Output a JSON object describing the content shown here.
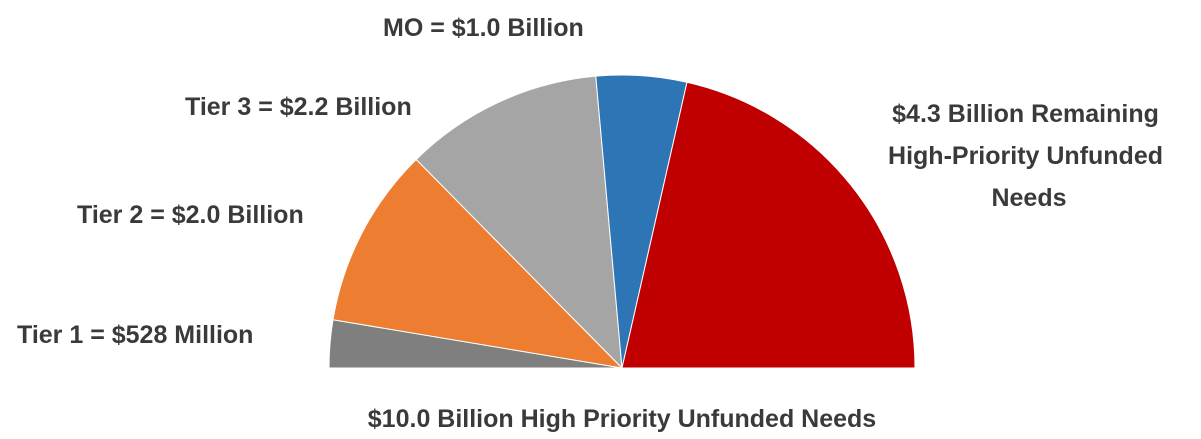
{
  "chart_data": {
    "type": "pie",
    "subtype": "half-pie",
    "title": "$10.0 Billion High Priority Unfunded Needs",
    "slices": [
      {
        "label": "Tier 1 = $528 Million",
        "value": 0.528,
        "color": "#7f7f7f"
      },
      {
        "label": "Tier 2 = $2.0 Billion",
        "value": 2.0,
        "color": "#ed7d31"
      },
      {
        "label": "Tier 3 = $2.2 Billion",
        "value": 2.2,
        "color": "#a5a5a5"
      },
      {
        "label": "MO = $1.0 Billion",
        "value": 1.0,
        "color": "#2e75b6"
      },
      {
        "label": "$4.3 Billion Remaining High-Priority Unfunded Needs",
        "value": 4.3,
        "color": "#c00000"
      }
    ],
    "total": 10.0,
    "unit": "Billion USD",
    "legend": "none"
  }
}
